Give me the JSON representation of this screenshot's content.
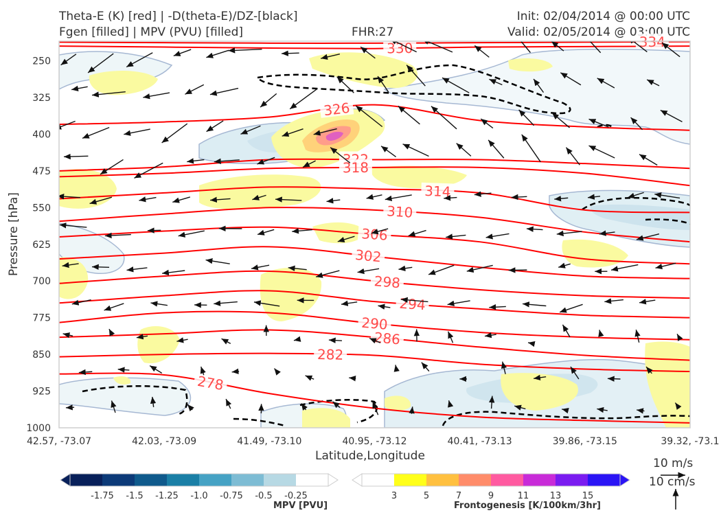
{
  "header": {
    "title_left_1": "Theta-E (K) [red] | -D(theta-E)/DZ-[black]",
    "title_left_2": "Fgen [filled] | MPV (PVU) [filled]",
    "fhr": "FHR:27",
    "init": "Init: 02/04/2014 @ 00:00 UTC",
    "valid": "Valid: 02/05/2014 @ 03:00 UTC"
  },
  "chart_data": {
    "type": "cross-section",
    "xlabel": "Latitude,Longitude",
    "ylabel": "Pressure [hPa]",
    "x_ticks": [
      "42.57, -73.07",
      "42.03, -73.09",
      "41.49, -73.10",
      "40.95, -73.12",
      "40.41, -73.13",
      "39.86, -73.15",
      "39.32, -73.1"
    ],
    "y_ticks": [
      250,
      325,
      400,
      475,
      550,
      625,
      700,
      775,
      850,
      925,
      1000
    ],
    "ylim": [
      1000,
      210
    ],
    "theta_e_contours": [
      {
        "label": "330",
        "y": [
          220,
          222,
          224,
          225,
          222,
          221,
          220
        ]
      },
      {
        "label": "334",
        "y": [
          212,
          213,
          214,
          214,
          213,
          212,
          211
        ]
      },
      {
        "label": "326",
        "y": [
          380,
          375,
          365,
          340,
          372,
          385,
          392
        ]
      },
      {
        "label": "322",
        "y": [
          475,
          467,
          452,
          452,
          452,
          460,
          470
        ]
      },
      {
        "label": "318",
        "y": [
          487,
          480,
          470,
          468,
          468,
          480,
          505
        ]
      },
      {
        "label": "314",
        "y": [
          532,
          520,
          508,
          512,
          520,
          555,
          560
        ]
      },
      {
        "label": "310",
        "y": [
          578,
          563,
          550,
          555,
          570,
          600,
          620
        ]
      },
      {
        "label": "306",
        "y": [
          610,
          598,
          590,
          605,
          620,
          655,
          665
        ]
      },
      {
        "label": "302",
        "y": [
          655,
          643,
          630,
          650,
          672,
          690,
          695
        ]
      },
      {
        "label": "298",
        "y": [
          705,
          690,
          680,
          700,
          718,
          730,
          735
        ]
      },
      {
        "label": "294",
        "y": [
          745,
          730,
          720,
          742,
          757,
          770,
          775
        ]
      },
      {
        "label": "290",
        "y": [
          785,
          765,
          765,
          787,
          805,
          815,
          820
        ]
      },
      {
        "label": "286",
        "y": [
          815,
          808,
          800,
          815,
          835,
          852,
          862
        ]
      },
      {
        "label": "282",
        "y": [
          855,
          850,
          848,
          852,
          870,
          880,
          885
        ]
      },
      {
        "label": "278",
        "y": [
          890,
          892,
          930,
          960,
          978,
          985,
          990
        ]
      }
    ],
    "colorbar_mpv": {
      "label": "MPV [PVU]",
      "ticks": [
        "-1.75",
        "-1.5",
        "-1.25",
        "-1.0",
        "-0.75",
        "-0.5",
        "-0.25"
      ],
      "colors": [
        "#08205a",
        "#0c3a78",
        "#0f5a8c",
        "#1a7fa6",
        "#45a2c4",
        "#7dbcd4",
        "#b7d9e4",
        "#ffffff"
      ]
    },
    "colorbar_fgen": {
      "label": "Frontogenesis [K/100km/3hr]",
      "ticks": [
        "3",
        "5",
        "7",
        "9",
        "11",
        "13",
        "15"
      ],
      "colors": [
        "#ffffff",
        "#ffff1a",
        "#ffc040",
        "#ff8c6a",
        "#ff5aa0",
        "#c82bd8",
        "#7a1cf0",
        "#2a14f5"
      ]
    },
    "wind_key": {
      "label_1": "10 m/s",
      "label_2": "10 cm/s"
    }
  }
}
